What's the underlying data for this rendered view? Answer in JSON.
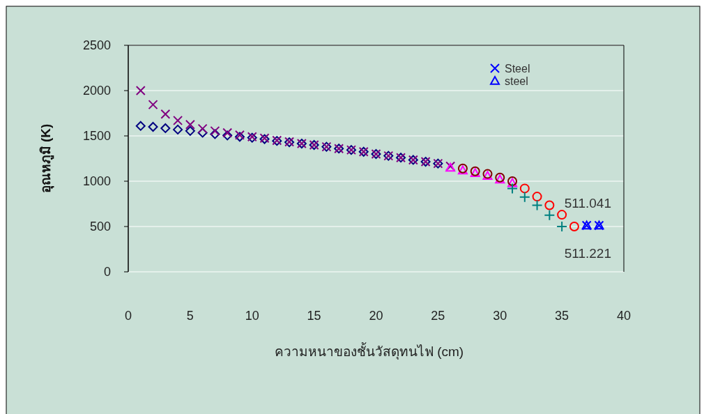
{
  "chart_data": {
    "type": "scatter",
    "xlabel": "ความหนาของชั้นวัสดุทนไฟ (cm)",
    "ylabel": "อุณหภูมิ (K)",
    "xlim": [
      0,
      40
    ],
    "xticks": [
      0,
      5,
      10,
      15,
      20,
      25,
      30,
      35,
      40
    ],
    "ylim": [
      0,
      2500
    ],
    "yticks": [
      0,
      500,
      1000,
      1500,
      2000,
      2500
    ],
    "grid": "y",
    "legend": "top",
    "series": [
      {
        "color": "#000080",
        "marker": "diamond",
        "x": [
          1,
          2,
          3,
          4,
          5,
          6,
          7,
          8,
          9,
          10,
          11,
          12,
          13,
          14,
          15,
          16,
          17,
          18,
          19,
          20,
          21,
          22,
          23,
          24,
          25
        ],
        "values": [
          1610,
          1600,
          1585,
          1570,
          1555,
          1535,
          1520,
          1505,
          1490,
          1480,
          1465,
          1445,
          1430,
          1415,
          1400,
          1380,
          1360,
          1345,
          1325,
          1300,
          1280,
          1260,
          1235,
          1215,
          1195
        ]
      },
      {
        "color": "#800080",
        "marker": "cross",
        "x": [
          1,
          2,
          3,
          4,
          5,
          6,
          7,
          8,
          9,
          10,
          11,
          12,
          13,
          14,
          15,
          16,
          17,
          18,
          19,
          20,
          21,
          22,
          23,
          24,
          25,
          26
        ],
        "values": [
          2000,
          1845,
          1740,
          1670,
          1625,
          1580,
          1555,
          1535,
          1510,
          1490,
          1475,
          1450,
          1435,
          1415,
          1400,
          1380,
          1360,
          1345,
          1325,
          1300,
          1280,
          1260,
          1235,
          1215,
          1195,
          1165
        ]
      },
      {
        "color": "#ff00ff",
        "marker": "triangle",
        "x": [
          26,
          27,
          28,
          29,
          30,
          31
        ],
        "values": [
          1150,
          1120,
          1090,
          1060,
          1020,
          980
        ]
      },
      {
        "color": "#800000",
        "marker": "circle",
        "x": [
          27,
          28,
          29,
          30,
          31
        ],
        "values": [
          1140,
          1110,
          1080,
          1040,
          1000
        ]
      },
      {
        "color": "#ff0000",
        "marker": "circle",
        "x": [
          32,
          33,
          34,
          35,
          36
        ],
        "values": [
          920,
          830,
          735,
          630,
          500
        ]
      },
      {
        "color": "#008080",
        "marker": "plus",
        "x": [
          31,
          32,
          33,
          34,
          35
        ],
        "values": [
          920,
          825,
          735,
          625,
          500
        ]
      },
      {
        "name": "Steel",
        "color": "#0000ff",
        "marker": "cross",
        "x": [
          37,
          38
        ],
        "values": [
          511,
          511
        ]
      },
      {
        "name": "steel",
        "color": "#0000ff",
        "marker": "triangle",
        "x": [
          37,
          38
        ],
        "values": [
          511,
          511
        ]
      }
    ],
    "annotations": [
      "511.041",
      "511.221"
    ]
  }
}
